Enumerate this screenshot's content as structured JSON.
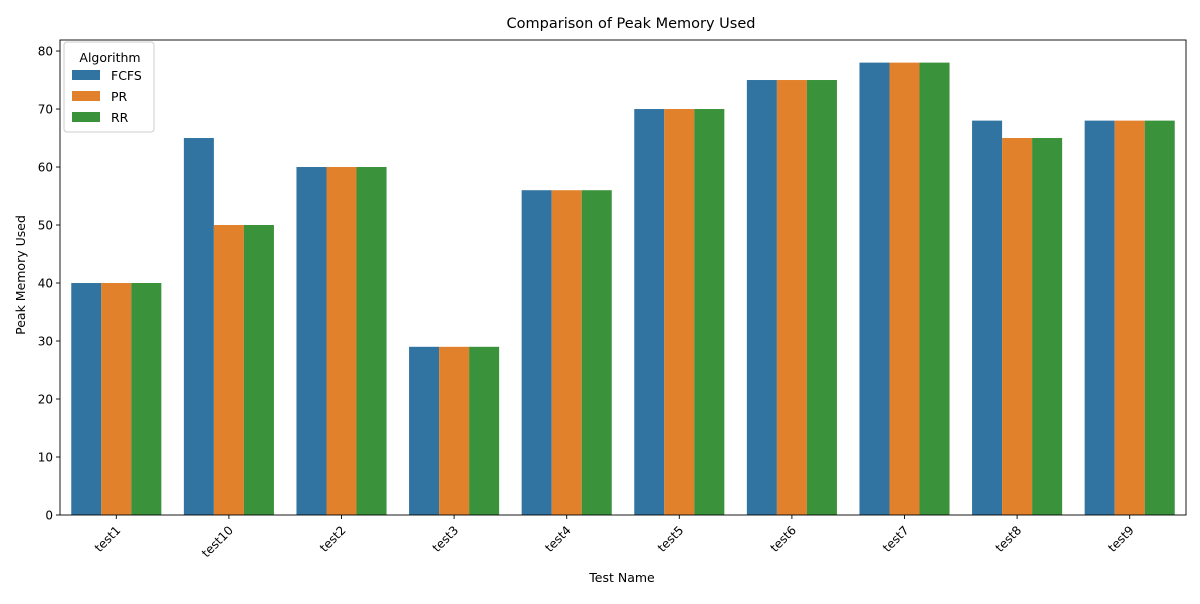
{
  "chart_data": {
    "type": "bar",
    "title": "Comparison of Peak Memory Used",
    "xlabel": "Test Name",
    "ylabel": "Peak Memory Used",
    "categories": [
      "test1",
      "test10",
      "test2",
      "test3",
      "test4",
      "test5",
      "test6",
      "test7",
      "test8",
      "test9"
    ],
    "series": [
      {
        "name": "FCFS",
        "color": "#3274a1",
        "values": [
          40,
          65,
          60,
          29,
          56,
          70,
          75,
          78,
          68,
          68
        ]
      },
      {
        "name": "PR",
        "color": "#e1812c",
        "values": [
          40,
          50,
          60,
          29,
          56,
          70,
          75,
          78,
          65,
          68
        ]
      },
      {
        "name": "RR",
        "color": "#3a923a",
        "values": [
          40,
          50,
          60,
          29,
          56,
          70,
          75,
          78,
          65,
          68
        ]
      }
    ],
    "ylim": [
      0,
      81.9
    ],
    "yticks": [
      0,
      10,
      20,
      30,
      40,
      50,
      60,
      70,
      80
    ],
    "xtick_rotation_deg": 45,
    "grid": false,
    "legend": {
      "title": "Algorithm",
      "placement": "top-left"
    }
  }
}
